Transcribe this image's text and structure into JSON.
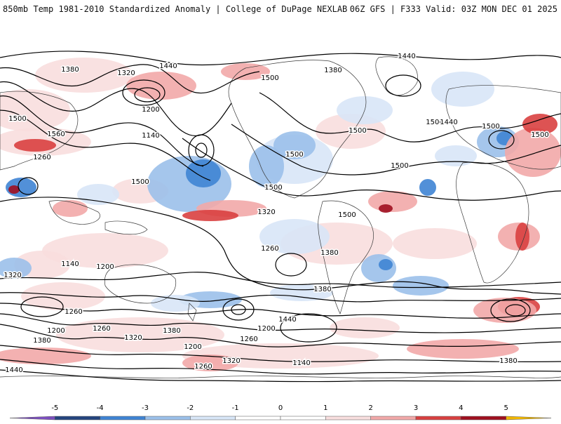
{
  "header": {
    "title_left": "850mb Temp 1981-2010 Standardized Anomaly | College of DuPage NEXLAB",
    "title_right": "06Z GFS | F333 Valid: 03Z MON DEC 01 2025"
  },
  "map": {
    "field": "850mb Temp Standardized Anomaly",
    "overlay": "geopotential height contours",
    "contour_labels": [
      "1440",
      "1380",
      "1320",
      "1200",
      "1140",
      "1500",
      "1560",
      "1260",
      "1440",
      "1380",
      "1500",
      "1500",
      "1500",
      "1500",
      "1500",
      "1500",
      "1500",
      "1440",
      "1500",
      "1500",
      "1500",
      "1320",
      "1380",
      "1260",
      "1200",
      "1140",
      "1380",
      "1320",
      "1260",
      "1200",
      "1440",
      "1380",
      "1320",
      "1260",
      "1200",
      "1260",
      "1140",
      "1200",
      "1380",
      "1320",
      "1260",
      "1440",
      "1380"
    ],
    "colors": {
      "coast": "#3a3a3a",
      "contour": "#000000",
      "pos_1": "#f8dede",
      "pos_2": "#f2a9a9",
      "pos_3": "#d94040",
      "pos_4": "#a01020",
      "neg_1": "#d8e6f7",
      "neg_2": "#9bc0ea",
      "neg_3": "#3f84d4",
      "neg_4": "#25457f"
    }
  },
  "colorbar": {
    "ticks": [
      "-5",
      "-4",
      "-3",
      "-2",
      "-1",
      "0",
      "1",
      "2",
      "3",
      "4",
      "5"
    ],
    "colors": [
      "#7c4fbf",
      "#25457f",
      "#3f84d4",
      "#9bc0ea",
      "#d8e6f7",
      "#ffffff",
      "#ffffff",
      "#f8dede",
      "#f2a9a9",
      "#d94040",
      "#a01020",
      "#f2b700"
    ]
  }
}
